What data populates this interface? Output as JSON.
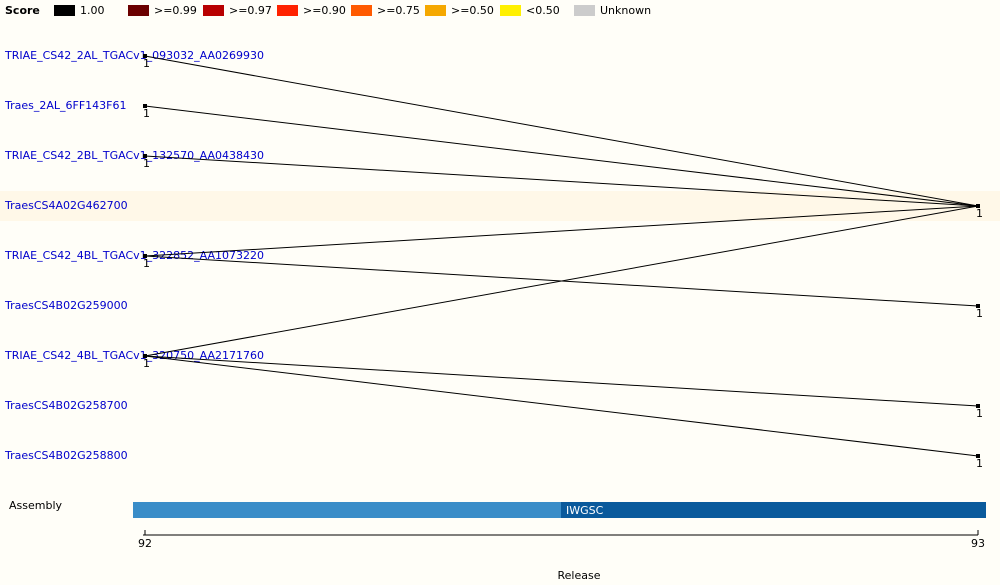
{
  "legend": {
    "title": "Score",
    "entries": [
      {
        "label": "1.00",
        "color": "#000000"
      },
      {
        "label": ">=0.99",
        "color": "#6b0000"
      },
      {
        "label": ">=0.97",
        "color": "#b80000"
      },
      {
        "label": ">=0.90",
        "color": "#ff2200"
      },
      {
        "label": ">=0.75",
        "color": "#ff5a00"
      },
      {
        "label": ">=0.50",
        "color": "#f5a800"
      },
      {
        "label": "<0.50",
        "color": "#fff000"
      },
      {
        "label": "Unknown",
        "color": "#cccccc"
      }
    ]
  },
  "rows": [
    "TRIAE_CS42_2AL_TGACv1_093032_AA0269930",
    "Traes_2AL_6FF143F61",
    "TRIAE_CS42_2BL_TGACv1_132570_AA0438430",
    "TraesCS4A02G462700",
    "TRIAE_CS42_4BL_TGACv1_322852_AA1073220",
    "TraesCS4B02G259000",
    "TRIAE_CS42_4BL_TGACv1_320750_AA2171760",
    "TraesCS4B02G258700",
    "TraesCS4B02G258800"
  ],
  "nodes": [
    {
      "row": 0,
      "release": 92,
      "label": "1"
    },
    {
      "row": 1,
      "release": 92,
      "label": "1"
    },
    {
      "row": 2,
      "release": 92,
      "label": "1"
    },
    {
      "row": 4,
      "release": 92,
      "label": "1"
    },
    {
      "row": 6,
      "release": 92,
      "label": "1"
    },
    {
      "row": 3,
      "release": 93,
      "label": "1"
    },
    {
      "row": 5,
      "release": 93,
      "label": "1"
    },
    {
      "row": 7,
      "release": 93,
      "label": "1"
    },
    {
      "row": 8,
      "release": 93,
      "label": "1"
    }
  ],
  "edges": [
    [
      0,
      5
    ],
    [
      1,
      5
    ],
    [
      2,
      5
    ],
    [
      3,
      5
    ],
    [
      3,
      6
    ],
    [
      4,
      5
    ],
    [
      4,
      7
    ],
    [
      4,
      8
    ]
  ],
  "assembly": {
    "label": "Assembly",
    "name": "IWGSC"
  },
  "releases": {
    "title": "Release",
    "values": [
      92,
      93
    ]
  }
}
